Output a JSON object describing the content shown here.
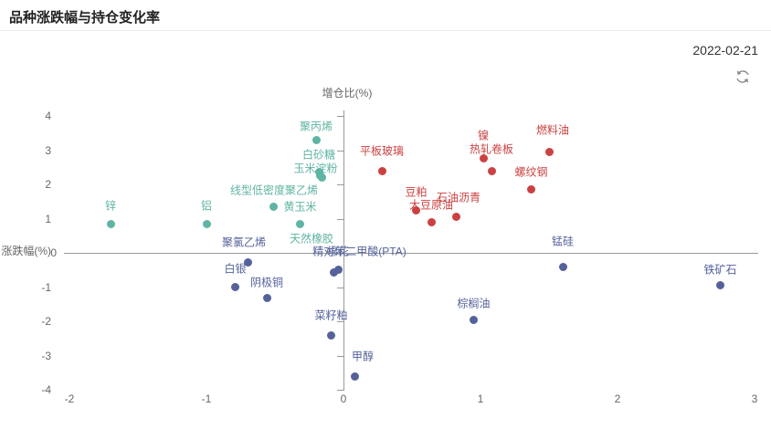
{
  "header": {
    "title": "品种涨跌幅与持仓变化率",
    "date": "2022-02-21"
  },
  "chart_data": {
    "type": "scatter",
    "title": "品种涨跌幅与持仓变化率",
    "xlabel": "涨跌幅(%)",
    "ylabel": "增仓比(%)",
    "xlim": [
      -2,
      3
    ],
    "ylim": [
      -4,
      4
    ],
    "x_ticks": [
      -2,
      -1,
      0,
      1,
      2,
      3
    ],
    "y_ticks": [
      4,
      3,
      2,
      1,
      0,
      -1,
      -2,
      -3,
      -4
    ],
    "grid": false,
    "legend": "none",
    "series": [
      {
        "group": "price-down-position-up",
        "color": "#5FB4A2",
        "points": [
          {
            "name": "锌",
            "x": -1.7,
            "y": 0.85
          },
          {
            "name": "铝",
            "x": -1.0,
            "y": 0.85
          },
          {
            "name": "聚丙烯",
            "x": -0.2,
            "y": 3.3,
            "ldy": -15
          },
          {
            "name": "白砂糖",
            "x": -0.18,
            "y": 2.35
          },
          {
            "name": "玉米淀粉",
            "x": -0.17,
            "y": 2.26,
            "ldx": -5,
            "ldy": -8
          },
          {
            "name": "线型低密度聚乙烯",
            "x": -0.16,
            "y": 2.2,
            "ldx": -52,
            "ldy": 13
          },
          {
            "name": "黄玉米",
            "x": -0.51,
            "y": 1.35,
            "ldx": 29,
            "ldy": 0
          },
          {
            "name": "天然橡胶",
            "x": -0.32,
            "y": 0.85,
            "ldx": 13,
            "ldy": 16
          }
        ]
      },
      {
        "group": "price-up-position-up",
        "color": "#CB4141",
        "points": [
          {
            "name": "平板玻璃",
            "x": 0.28,
            "y": 2.4,
            "ldy": -22
          },
          {
            "name": "豆粕",
            "x": 0.53,
            "y": 1.25
          },
          {
            "name": "大豆原油",
            "x": 0.64,
            "y": 0.9,
            "ldy": -19
          },
          {
            "name": "石油沥青",
            "x": 0.82,
            "y": 1.05,
            "ldx": 3,
            "ldy": -22
          },
          {
            "name": "镍",
            "x": 1.02,
            "y": 2.75,
            "ldy": -26
          },
          {
            "name": "热轧卷板",
            "x": 1.08,
            "y": 2.4,
            "ldy": -24
          },
          {
            "name": "螺纹钢",
            "x": 1.37,
            "y": 1.85
          },
          {
            "name": "燃料油",
            "x": 1.5,
            "y": 2.95,
            "ldx": 4,
            "ldy": -24
          }
        ]
      },
      {
        "group": "position-down",
        "color": "#55629A",
        "points": [
          {
            "name": "聚氯乙烯",
            "x": -0.7,
            "y": -0.27,
            "ldx": -4,
            "ldy": -22
          },
          {
            "name": "白银",
            "x": -0.79,
            "y": -1.0,
            "ldy": -21
          },
          {
            "name": "阴极铜",
            "x": -0.56,
            "y": -1.33,
            "ldy": -18
          },
          {
            "name": "精对苯二甲酸(PTA)",
            "x": -0.07,
            "y": -0.57,
            "ldx": 28,
            "ldy": -23
          },
          {
            "name": "棉花",
            "x": -0.04,
            "y": -0.5,
            "ldy": -21
          },
          {
            "name": "菜籽粕",
            "x": -0.09,
            "y": -2.4,
            "ldy": -22
          },
          {
            "name": "甲醇",
            "x": 0.08,
            "y": -3.6,
            "ldx": 9,
            "ldy": -22
          },
          {
            "name": "棕榈油",
            "x": 0.95,
            "y": -1.95,
            "ldy": -18
          },
          {
            "name": "锰硅",
            "x": 1.6,
            "y": -0.4,
            "ldy": -28
          },
          {
            "name": "铁矿石",
            "x": 2.75,
            "y": -0.95,
            "ldy": -18
          }
        ]
      }
    ]
  }
}
